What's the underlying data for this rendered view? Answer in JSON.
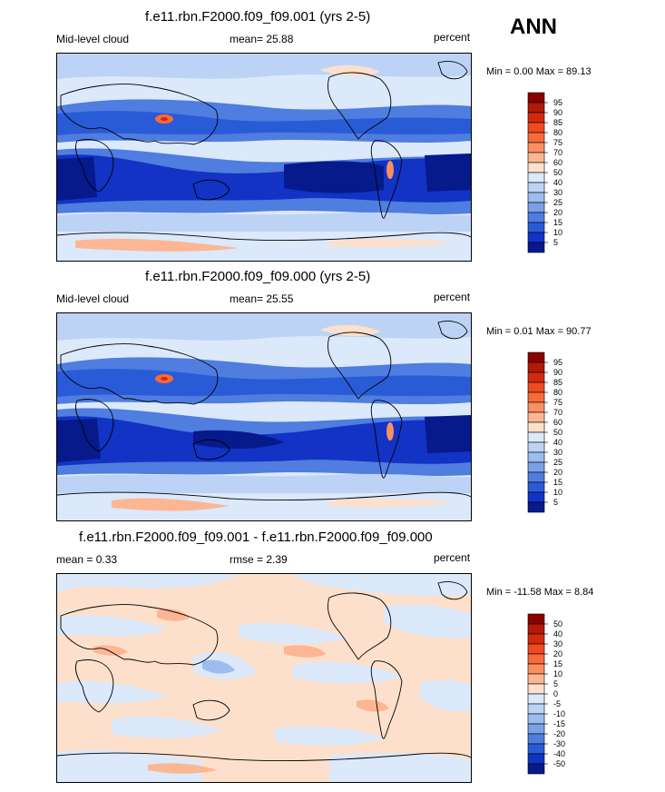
{
  "season": "ANN",
  "panels": [
    {
      "title": "f.e11.rbn.F2000.f09_f09.001 (yrs 2-5)",
      "left_label": "Mid-level cloud",
      "center_label": "mean=  25.88",
      "right_label": "percent",
      "minmax": "Min =   0.00 Max =  89.13"
    },
    {
      "title": "f.e11.rbn.F2000.f09_f09.000 (yrs 2-5)",
      "left_label": "Mid-level cloud",
      "center_label": "mean=  25.55",
      "right_label": "percent",
      "minmax": "Min =   0.01 Max =  90.77"
    },
    {
      "title": "f.e11.rbn.F2000.f09_f09.001 - f.e11.rbn.F2000.f09_f09.000",
      "left_label": "mean =   0.33",
      "center_label": "rmse =   2.39",
      "right_label": "percent",
      "minmax": "Min = -11.58 Max =   8.84"
    }
  ],
  "chart_data": [
    {
      "type": "heatmap",
      "title": "f.e11.rbn.F2000.f09_f09.001 (yrs 2-5)",
      "variable": "Mid-level cloud",
      "units": "percent",
      "mean": 25.88,
      "min": 0.0,
      "max": 89.13,
      "colorbar": {
        "levels": [
          95,
          90,
          85,
          80,
          75,
          70,
          60,
          50,
          40,
          30,
          25,
          20,
          15,
          10,
          5
        ],
        "labels": [
          "95",
          "90",
          "85",
          "80",
          "75",
          "70",
          "60",
          "50",
          "40",
          "30",
          "25",
          "20",
          "15",
          "10",
          "5"
        ],
        "colors": [
          "#8b0000",
          "#b01a06",
          "#d42a0c",
          "#ef4a20",
          "#f86a3a",
          "#fb8f60",
          "#fdb693",
          "#fde0cc",
          "#dbe9fb",
          "#bdd3f5",
          "#9dbcef",
          "#7aa0e8",
          "#4f7de0",
          "#2a5bd7",
          "#1233c4",
          "#061a8c"
        ]
      }
    },
    {
      "type": "heatmap",
      "title": "f.e11.rbn.F2000.f09_f09.000 (yrs 2-5)",
      "variable": "Mid-level cloud",
      "units": "percent",
      "mean": 25.55,
      "min": 0.01,
      "max": 90.77,
      "colorbar": {
        "levels": [
          95,
          90,
          85,
          80,
          75,
          70,
          60,
          50,
          40,
          30,
          25,
          20,
          15,
          10,
          5
        ],
        "labels": [
          "95",
          "90",
          "85",
          "80",
          "75",
          "70",
          "60",
          "50",
          "40",
          "30",
          "25",
          "20",
          "15",
          "10",
          "5"
        ],
        "colors": [
          "#8b0000",
          "#b01a06",
          "#d42a0c",
          "#ef4a20",
          "#f86a3a",
          "#fb8f60",
          "#fdb693",
          "#fde0cc",
          "#dbe9fb",
          "#bdd3f5",
          "#9dbcef",
          "#7aa0e8",
          "#4f7de0",
          "#2a5bd7",
          "#1233c4",
          "#061a8c"
        ]
      }
    },
    {
      "type": "heatmap",
      "title": "f.e11.rbn.F2000.f09_f09.001 - f.e11.rbn.F2000.f09_f09.000",
      "units": "percent",
      "mean": 0.33,
      "rmse": 2.39,
      "min": -11.58,
      "max": 8.84,
      "colorbar": {
        "levels": [
          50,
          40,
          30,
          20,
          15,
          10,
          5,
          0,
          -5,
          -10,
          -15,
          -20,
          -30,
          -40,
          -50
        ],
        "labels": [
          "50",
          "40",
          "30",
          "20",
          "15",
          "10",
          "5",
          "0",
          "-5",
          "-10",
          "-15",
          "-20",
          "-30",
          "-40",
          "-50"
        ],
        "colors": [
          "#8b0000",
          "#b01a06",
          "#d42a0c",
          "#ef4a20",
          "#f86a3a",
          "#fb8f60",
          "#fdb693",
          "#fde0cc",
          "#dbe9fb",
          "#bdd3f5",
          "#9dbcef",
          "#7aa0e8",
          "#4f7de0",
          "#2a5bd7",
          "#1233c4",
          "#061a8c"
        ]
      }
    }
  ]
}
